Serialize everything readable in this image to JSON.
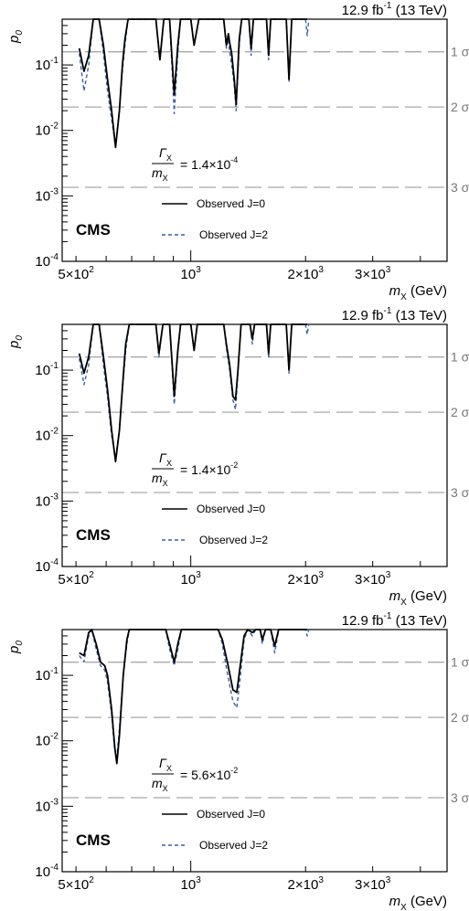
{
  "figure": {
    "header": {
      "lumi": "12.9 fb",
      "lumi_sup": "-1",
      "energy": " (13 TeV)"
    },
    "cms_label": "CMS",
    "legend": {
      "observed_j0": "Observed J=0",
      "observed_j2": "Observed J=2"
    },
    "y_axis_label": {
      "symbol": "p",
      "subscript": "0"
    },
    "x_axis_label": {
      "symbol": "m",
      "subscript": "X",
      "unit": " (GeV)"
    },
    "x_tick_labels": [
      {
        "value": 500,
        "base": "5×10",
        "exp": "2"
      },
      {
        "value": 1000,
        "base": "10",
        "exp": "3"
      },
      {
        "value": 2000,
        "base": "2×10",
        "exp": "3"
      },
      {
        "value": 3000,
        "base": "3×10",
        "exp": "3"
      }
    ],
    "y_tick_labels": [
      {
        "value": 0.1,
        "base": "10",
        "exp": "-1"
      },
      {
        "value": 0.01,
        "base": "10",
        "exp": "-2"
      },
      {
        "value": 0.001,
        "base": "10",
        "exp": "-3"
      },
      {
        "value": 0.0001,
        "base": "10",
        "exp": "-4"
      }
    ],
    "sigma_lines": [
      {
        "label": "1 σ",
        "value": 0.1587
      },
      {
        "label": "2 σ",
        "value": 0.02275
      },
      {
        "label": "3 σ",
        "value": 0.00135
      }
    ],
    "colors": {
      "observed_j0": "#000000",
      "observed_j2": "#3a5fa8",
      "sigma_line": "#a8a8a8",
      "sigma_text": "#777777"
    }
  },
  "chart_data": [
    {
      "type": "line",
      "panel": "top",
      "xscale": "log",
      "yscale": "log",
      "xlim": [
        460,
        4700
      ],
      "ylim": [
        0.0001,
        0.5
      ],
      "width_label": {
        "numerator": "Γ",
        "num_sub": "X",
        "denominator": "m",
        "den_sub": "X",
        "value": "= 1.4×10",
        "exp": "-4"
      },
      "series": [
        {
          "name": "Observed J=0",
          "points": [
            [
              510,
              0.18
            ],
            [
              525,
              0.08
            ],
            [
              540,
              0.14
            ],
            [
              555,
              0.5
            ],
            [
              575,
              0.5
            ],
            [
              590,
              0.2
            ],
            [
              605,
              0.06
            ],
            [
              620,
              0.02
            ],
            [
              635,
              0.0055
            ],
            [
              650,
              0.02
            ],
            [
              662,
              0.1
            ],
            [
              672,
              0.25
            ],
            [
              685,
              0.5
            ],
            [
              810,
              0.5
            ],
            [
              830,
              0.12
            ],
            [
              850,
              0.5
            ],
            [
              880,
              0.5
            ],
            [
              905,
              0.035
            ],
            [
              925,
              0.2
            ],
            [
              940,
              0.5
            ],
            [
              1000,
              0.5
            ],
            [
              1020,
              0.2
            ],
            [
              1050,
              0.5
            ],
            [
              1220,
              0.5
            ],
            [
              1240,
              0.2
            ],
            [
              1255,
              0.3
            ],
            [
              1265,
              0.22
            ],
            [
              1280,
              0.15
            ],
            [
              1300,
              0.06
            ],
            [
              1315,
              0.025
            ],
            [
              1340,
              0.25
            ],
            [
              1360,
              0.5
            ],
            [
              1420,
              0.5
            ],
            [
              1440,
              0.18
            ],
            [
              1460,
              0.5
            ],
            [
              1580,
              0.5
            ],
            [
              1600,
              0.14
            ],
            [
              1620,
              0.5
            ],
            [
              1780,
              0.5
            ],
            [
              1810,
              0.06
            ],
            [
              1840,
              0.5
            ],
            [
              2020,
              0.5
            ]
          ]
        },
        {
          "name": "Observed J=2",
          "points": [
            [
              510,
              0.15
            ],
            [
              525,
              0.04
            ],
            [
              540,
              0.1
            ],
            [
              555,
              0.5
            ],
            [
              575,
              0.5
            ],
            [
              590,
              0.15
            ],
            [
              605,
              0.04
            ],
            [
              620,
              0.015
            ],
            [
              635,
              0.0055
            ],
            [
              650,
              0.02
            ],
            [
              662,
              0.08
            ],
            [
              672,
              0.2
            ],
            [
              685,
              0.5
            ],
            [
              810,
              0.5
            ],
            [
              830,
              0.12
            ],
            [
              850,
              0.5
            ],
            [
              880,
              0.5
            ],
            [
              905,
              0.018
            ],
            [
              925,
              0.15
            ],
            [
              940,
              0.5
            ],
            [
              1000,
              0.5
            ],
            [
              1020,
              0.2
            ],
            [
              1050,
              0.5
            ],
            [
              1220,
              0.5
            ],
            [
              1240,
              0.18
            ],
            [
              1255,
              0.25
            ],
            [
              1265,
              0.16
            ],
            [
              1280,
              0.1
            ],
            [
              1300,
              0.05
            ],
            [
              1315,
              0.02
            ],
            [
              1340,
              0.2
            ],
            [
              1360,
              0.5
            ],
            [
              1420,
              0.5
            ],
            [
              1440,
              0.14
            ],
            [
              1460,
              0.5
            ],
            [
              1580,
              0.5
            ],
            [
              1600,
              0.12
            ],
            [
              1620,
              0.5
            ],
            [
              1780,
              0.5
            ],
            [
              1810,
              0.055
            ],
            [
              1840,
              0.5
            ],
            [
              2000,
              0.5
            ],
            [
              2020,
              0.28
            ],
            [
              2040,
              0.5
            ]
          ]
        }
      ]
    },
    {
      "type": "line",
      "panel": "middle",
      "xscale": "log",
      "yscale": "log",
      "xlim": [
        460,
        4700
      ],
      "ylim": [
        0.0001,
        0.5
      ],
      "width_label": {
        "numerator": "Γ",
        "num_sub": "X",
        "denominator": "m",
        "den_sub": "X",
        "value": "= 1.4×10",
        "exp": "-2"
      },
      "series": [
        {
          "name": "Observed J=0",
          "points": [
            [
              510,
              0.18
            ],
            [
              525,
              0.09
            ],
            [
              540,
              0.16
            ],
            [
              555,
              0.5
            ],
            [
              575,
              0.5
            ],
            [
              592,
              0.14
            ],
            [
              605,
              0.05
            ],
            [
              620,
              0.012
            ],
            [
              635,
              0.004
            ],
            [
              650,
              0.012
            ],
            [
              665,
              0.08
            ],
            [
              675,
              0.25
            ],
            [
              690,
              0.5
            ],
            [
              810,
              0.5
            ],
            [
              825,
              0.18
            ],
            [
              845,
              0.5
            ],
            [
              880,
              0.5
            ],
            [
              905,
              0.04
            ],
            [
              925,
              0.2
            ],
            [
              940,
              0.5
            ],
            [
              1000,
              0.5
            ],
            [
              1020,
              0.2
            ],
            [
              1040,
              0.5
            ],
            [
              1220,
              0.5
            ],
            [
              1240,
              0.25
            ],
            [
              1265,
              0.12
            ],
            [
              1290,
              0.04
            ],
            [
              1310,
              0.035
            ],
            [
              1330,
              0.1
            ],
            [
              1355,
              0.5
            ],
            [
              1430,
              0.5
            ],
            [
              1450,
              0.3
            ],
            [
              1470,
              0.5
            ],
            [
              1580,
              0.5
            ],
            [
              1600,
              0.18
            ],
            [
              1620,
              0.5
            ],
            [
              1780,
              0.5
            ],
            [
              1810,
              0.1
            ],
            [
              1840,
              0.5
            ],
            [
              2020,
              0.5
            ]
          ]
        },
        {
          "name": "Observed J=2",
          "points": [
            [
              510,
              0.15
            ],
            [
              525,
              0.06
            ],
            [
              540,
              0.12
            ],
            [
              555,
              0.5
            ],
            [
              575,
              0.5
            ],
            [
              590,
              0.12
            ],
            [
              605,
              0.04
            ],
            [
              620,
              0.01
            ],
            [
              635,
              0.0045
            ],
            [
              650,
              0.012
            ],
            [
              665,
              0.07
            ],
            [
              675,
              0.2
            ],
            [
              690,
              0.5
            ],
            [
              810,
              0.5
            ],
            [
              825,
              0.16
            ],
            [
              845,
              0.5
            ],
            [
              880,
              0.5
            ],
            [
              905,
              0.03
            ],
            [
              925,
              0.18
            ],
            [
              940,
              0.5
            ],
            [
              1000,
              0.5
            ],
            [
              1020,
              0.2
            ],
            [
              1040,
              0.5
            ],
            [
              1220,
              0.5
            ],
            [
              1240,
              0.22
            ],
            [
              1265,
              0.1
            ],
            [
              1290,
              0.035
            ],
            [
              1310,
              0.025
            ],
            [
              1330,
              0.09
            ],
            [
              1355,
              0.5
            ],
            [
              1430,
              0.5
            ],
            [
              1450,
              0.25
            ],
            [
              1470,
              0.5
            ],
            [
              1580,
              0.5
            ],
            [
              1600,
              0.15
            ],
            [
              1620,
              0.5
            ],
            [
              1780,
              0.5
            ],
            [
              1810,
              0.09
            ],
            [
              1840,
              0.5
            ],
            [
              2000,
              0.5
            ],
            [
              2020,
              0.35
            ],
            [
              2040,
              0.5
            ]
          ]
        }
      ]
    },
    {
      "type": "line",
      "panel": "bottom",
      "xscale": "log",
      "yscale": "log",
      "xlim": [
        460,
        4700
      ],
      "ylim": [
        0.0001,
        0.5
      ],
      "width_label": {
        "numerator": "Γ",
        "num_sub": "X",
        "denominator": "m",
        "den_sub": "X",
        "value": "= 5.6×10",
        "exp": "-2"
      },
      "series": [
        {
          "name": "Observed J=0",
          "points": [
            [
              510,
              0.22
            ],
            [
              525,
              0.2
            ],
            [
              540,
              0.45
            ],
            [
              550,
              0.5
            ],
            [
              565,
              0.3
            ],
            [
              580,
              0.16
            ],
            [
              595,
              0.14
            ],
            [
              605,
              0.1
            ],
            [
              620,
              0.03
            ],
            [
              632,
              0.008
            ],
            [
              640,
              0.0045
            ],
            [
              650,
              0.012
            ],
            [
              665,
              0.1
            ],
            [
              680,
              0.35
            ],
            [
              690,
              0.5
            ],
            [
              860,
              0.5
            ],
            [
              880,
              0.3
            ],
            [
              905,
              0.16
            ],
            [
              925,
              0.3
            ],
            [
              945,
              0.5
            ],
            [
              1180,
              0.5
            ],
            [
              1210,
              0.35
            ],
            [
              1250,
              0.15
            ],
            [
              1290,
              0.06
            ],
            [
              1320,
              0.055
            ],
            [
              1350,
              0.15
            ],
            [
              1380,
              0.4
            ],
            [
              1410,
              0.5
            ],
            [
              1450,
              0.45
            ],
            [
              1480,
              0.5
            ],
            [
              1520,
              0.5
            ],
            [
              1540,
              0.35
            ],
            [
              1570,
              0.5
            ],
            [
              1620,
              0.5
            ],
            [
              1660,
              0.28
            ],
            [
              1700,
              0.5
            ],
            [
              2020,
              0.5
            ]
          ]
        },
        {
          "name": "Observed J=2",
          "points": [
            [
              510,
              0.2
            ],
            [
              525,
              0.16
            ],
            [
              540,
              0.4
            ],
            [
              550,
              0.5
            ],
            [
              565,
              0.25
            ],
            [
              580,
              0.14
            ],
            [
              595,
              0.12
            ],
            [
              605,
              0.08
            ],
            [
              620,
              0.025
            ],
            [
              632,
              0.007
            ],
            [
              640,
              0.0055
            ],
            [
              650,
              0.015
            ],
            [
              665,
              0.1
            ],
            [
              680,
              0.3
            ],
            [
              690,
              0.5
            ],
            [
              860,
              0.5
            ],
            [
              880,
              0.25
            ],
            [
              905,
              0.14
            ],
            [
              925,
              0.25
            ],
            [
              945,
              0.5
            ],
            [
              1180,
              0.5
            ],
            [
              1210,
              0.3
            ],
            [
              1250,
              0.1
            ],
            [
              1290,
              0.04
            ],
            [
              1320,
              0.032
            ],
            [
              1350,
              0.1
            ],
            [
              1380,
              0.35
            ],
            [
              1410,
              0.5
            ],
            [
              1450,
              0.4
            ],
            [
              1480,
              0.5
            ],
            [
              1520,
              0.5
            ],
            [
              1540,
              0.3
            ],
            [
              1570,
              0.5
            ],
            [
              1620,
              0.5
            ],
            [
              1660,
              0.22
            ],
            [
              1700,
              0.5
            ],
            [
              2000,
              0.5
            ],
            [
              2020,
              0.4
            ],
            [
              2040,
              0.5
            ]
          ]
        }
      ]
    }
  ]
}
